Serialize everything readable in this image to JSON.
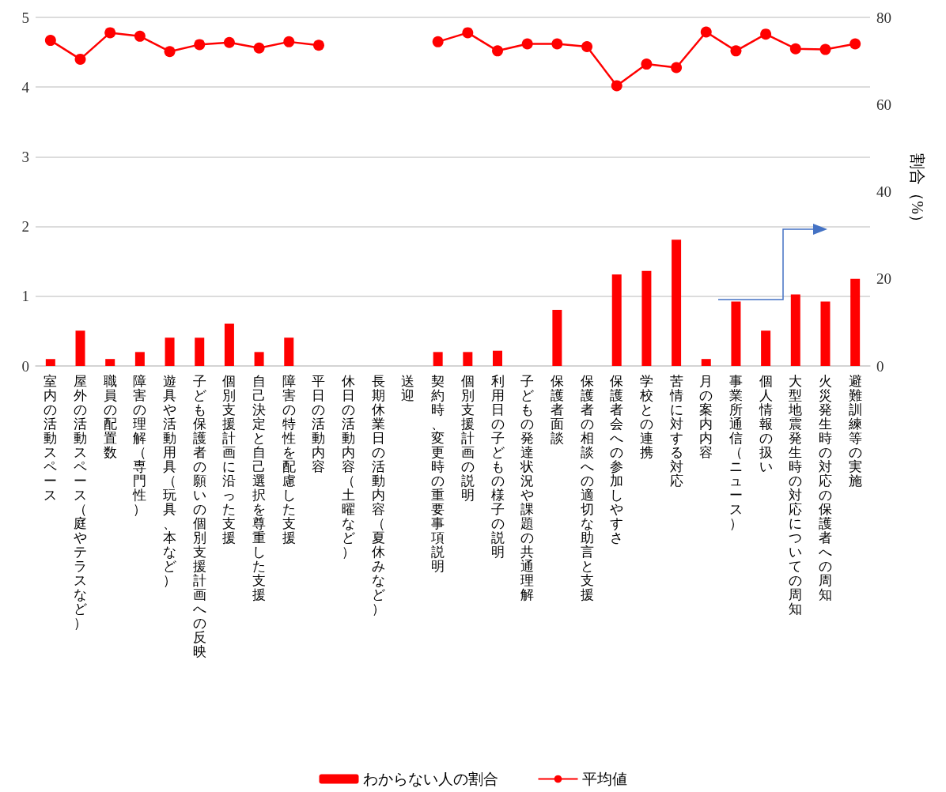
{
  "chart_data": {
    "type": "bar",
    "categories": [
      "室内の活動スペース",
      "屋外の活動スペース（庭やテラスなど）",
      "職員の配置数",
      "障害の理解（専門性）",
      "遊具や活動用具（玩具、本など）",
      "子ども保護者の願いの個別支援計画への反映",
      "個別支援計画に沿った支援",
      "自己決定と自己選択を尊重した支援",
      "障害の特性を配慮した支援",
      "平日の活動内容",
      "休日の活動内容（土曜など）",
      "長期休業日の活動内容（夏休みなど）",
      "送迎",
      "契約時、変更時の重要事項説明",
      "個別支援計画の説明",
      "利用日の子どもの様子の説明",
      "子どもの発達状況や課題の共通理解",
      "保護者面談",
      "保護者の相談への適切な助言と支援",
      "保護者会への参加しやすさ",
      "学校との連携",
      "苦情に対する対応",
      "月の案内内容",
      "事業所通信（ニュース）",
      "個人情報の扱い",
      "大型地震発生時の対応についての周知",
      "火災発生時の対応の保護者への周知",
      "避難訓練等の実施"
    ],
    "series": [
      {
        "name": "わからない人の割合",
        "axis": "y2",
        "color": "#ff0000",
        "values": [
          1.6,
          8.1,
          1.6,
          3.2,
          6.5,
          6.5,
          9.7,
          3.2,
          6.5,
          null,
          null,
          null,
          null,
          3.2,
          3.2,
          3.5,
          null,
          12.9,
          null,
          21.0,
          21.8,
          29.0,
          1.6,
          14.8,
          8.1,
          16.4,
          14.8,
          20.0
        ]
      },
      {
        "name": "平均値",
        "type": "line",
        "color": "#ff0000",
        "marker": "circle",
        "values": [
          4.67,
          4.4,
          4.78,
          4.73,
          4.51,
          4.61,
          4.64,
          4.56,
          4.65,
          4.6,
          null,
          null,
          null,
          4.65,
          4.78,
          4.52,
          4.62,
          4.62,
          4.58,
          4.02,
          4.33,
          4.28,
          4.79,
          4.52,
          4.76,
          4.55,
          4.54,
          4.62
        ]
      }
    ],
    "ylim": [
      0,
      5
    ],
    "yticks": [
      0,
      1,
      2,
      3,
      4,
      5
    ],
    "y2lim": [
      0,
      80
    ],
    "y2ticks": [
      0,
      20,
      40,
      60,
      80
    ],
    "y2label": "割合（%）",
    "grid": "y",
    "legend": "bottom"
  }
}
